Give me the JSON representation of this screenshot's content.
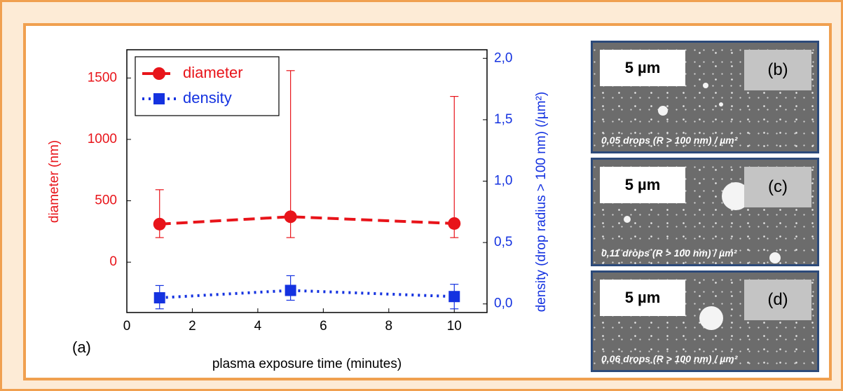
{
  "chart_data": {
    "type": "scatter",
    "x_label": "plasma exposure time (minutes)",
    "y_label": "diameter (nm)",
    "y2_label": "density (drop radius > 100 nm) (/µm²)",
    "annotation": "(a)",
    "xlim": [
      0,
      11
    ],
    "xticks": [
      0,
      2,
      4,
      6,
      8,
      10
    ],
    "ylim": [
      -410,
      1730
    ],
    "yticks": [
      0,
      500,
      1000,
      1500
    ],
    "y2lim": [
      -0.07,
      2.07
    ],
    "y2ticks": [
      {
        "value": 0,
        "label": "0,0"
      },
      {
        "value": 0.5,
        "label": "0,5"
      },
      {
        "value": 1,
        "label": "1,0"
      },
      {
        "value": 1.5,
        "label": "1,5"
      },
      {
        "value": 2,
        "label": "2,0"
      }
    ],
    "legend": "top-left",
    "x": [
      1,
      5,
      10
    ],
    "series": [
      {
        "name": "diameter",
        "color": "#e8141a",
        "marker": "circle",
        "line": "dash",
        "axis": "y",
        "values": [
          310,
          370,
          315
        ],
        "error_low": [
          200,
          200,
          200
        ],
        "error_high": [
          590,
          1560,
          1350
        ]
      },
      {
        "name": "density",
        "color": "#1432e0",
        "marker": "square",
        "line": "dot",
        "axis": "y2",
        "values": [
          0.05,
          0.11,
          0.06
        ],
        "error_low": [
          -0.04,
          0.03,
          -0.04
        ],
        "error_high": [
          0.15,
          0.23,
          0.16
        ]
      }
    ]
  },
  "panels": [
    {
      "scale": "5 µm",
      "label": "(b)",
      "caption": "0,05 drops (R > 100 nm) / µm²"
    },
    {
      "scale": "5 µm",
      "label": "(c)",
      "caption": "0,11 drops (R > 100 nm) / µm²"
    },
    {
      "scale": "5 µm",
      "label": "(d)",
      "caption": "0,06 drops (R > 100 nm) / µm²"
    }
  ]
}
